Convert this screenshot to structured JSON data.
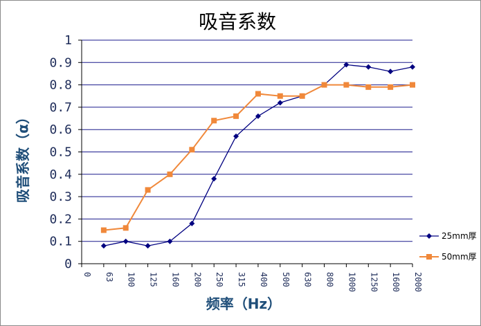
{
  "chart_data": {
    "type": "line",
    "title": "吸音系数",
    "xlabel": "频率（Hz）",
    "ylabel": "吸音系数（α）",
    "categories": [
      "0",
      "63",
      "100",
      "125",
      "160",
      "200",
      "250",
      "315",
      "400",
      "500",
      "630",
      "800",
      "1000",
      "1250",
      "1600",
      "2000"
    ],
    "yticks": [
      "0",
      "0.1",
      "0.2",
      "0.3",
      "0.4",
      "0.5",
      "0.6",
      "0.7",
      "0.8",
      "0.9",
      "1"
    ],
    "ylim": [
      0,
      1
    ],
    "grid": true,
    "legend_position": "right",
    "series": [
      {
        "name": "25mm厚",
        "color": "#000080",
        "marker": "diamond",
        "values": [
          null,
          0.08,
          0.1,
          0.08,
          0.1,
          0.18,
          0.38,
          0.57,
          0.66,
          0.72,
          0.75,
          0.8,
          0.89,
          0.88,
          0.86,
          0.88
        ]
      },
      {
        "name": "50mm厚",
        "color": "#f0883a",
        "marker": "square",
        "values": [
          null,
          0.15,
          0.16,
          0.33,
          0.4,
          0.51,
          0.64,
          0.66,
          0.76,
          0.75,
          0.75,
          0.8,
          0.8,
          0.79,
          0.79,
          0.8
        ]
      }
    ]
  }
}
